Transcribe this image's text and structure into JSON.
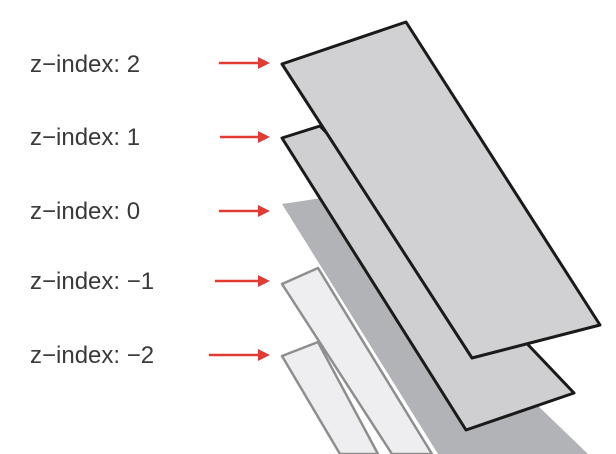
{
  "layers": [
    {
      "label": "z−index: 2",
      "z": 2,
      "fill": "#d1d1d3",
      "stroke": "#1a1a1a"
    },
    {
      "label": "z−index: 1",
      "z": 1,
      "fill": "#cfcfd1",
      "stroke": "#1a1a1a"
    },
    {
      "label": "z−index: 0",
      "z": 0,
      "fill": "#b2b3b6",
      "stroke": "none"
    },
    {
      "label": "z−index: −1",
      "z": -1,
      "fill": "#eeeef0",
      "stroke": "#8e8e8e"
    },
    {
      "label": "z−index: −2",
      "z": -2,
      "fill": "#eeeef0",
      "stroke": "#8e8e8e"
    }
  ],
  "colors": {
    "arrow": "#e23b33",
    "label_text": "#3a3a3a"
  }
}
